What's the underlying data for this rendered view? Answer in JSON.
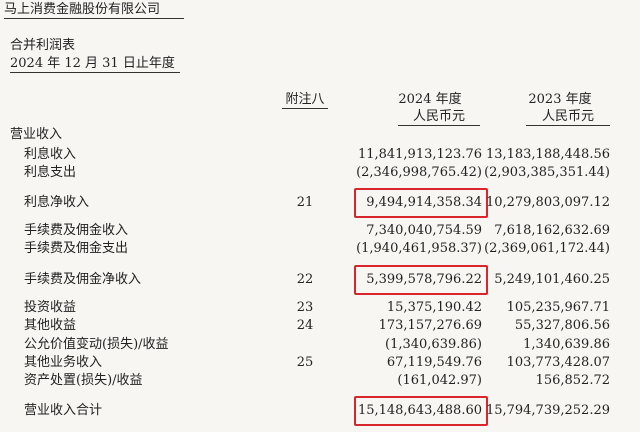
{
  "header": {
    "company": "马上消费金融股份有限公司",
    "title": "合并利润表",
    "period": "2024 年 12 月 31 日止年度"
  },
  "columns": {
    "note": "附注八",
    "y2024": {
      "year": "2024 年度",
      "unit": "人民币元"
    },
    "y2023": {
      "year": "2023 年度",
      "unit": "人民币元"
    }
  },
  "table": {
    "section": "营业收入",
    "rows": [
      {
        "label": "利息收入",
        "y2024": "11,841,913,123.76",
        "y2023": "13,183,188,448.56"
      },
      {
        "label": "利息支出",
        "y2024": "(2,346,998,765.42)",
        "y2023": "(2,903,385,351.44)"
      },
      {
        "label": "利息净收入",
        "note": "21",
        "y2024": "9,494,914,358.34",
        "y2023": "10,279,803,097.12",
        "highlighted": true
      },
      {
        "label": "手续费及佣金收入",
        "y2024": "7,340,040,754.59",
        "y2023": "7,618,162,632.69"
      },
      {
        "label": "手续费及佣金支出",
        "y2024": "(1,940,461,958.37)",
        "y2023": "(2,369,061,172.44)"
      },
      {
        "label": "手续费及佣金净收入",
        "note": "22",
        "y2024": "5,399,578,796.22",
        "y2023": "5,249,101,460.25",
        "highlighted": true
      },
      {
        "label": "投资收益",
        "note": "23",
        "y2024": "15,375,190.42",
        "y2023": "105,235,967.71"
      },
      {
        "label": "其他收益",
        "note": "24",
        "y2024": "173,157,276.69",
        "y2023": "55,327,806.56"
      },
      {
        "label": "公允价值变动(损失)/收益",
        "y2024": "(1,340,639.86)",
        "y2023": "1,340,639.86"
      },
      {
        "label": "其他业务收入",
        "note": "25",
        "y2024": "67,119,549.76",
        "y2023": "103,773,428.07"
      },
      {
        "label": "资产处置(损失)/收益",
        "y2024": "(161,042.97)",
        "y2023": "156,852.72"
      },
      {
        "label": "营业收入合计",
        "y2024": "15,148,643,488.60",
        "y2023": "15,794,739,252.29",
        "highlighted": true
      }
    ]
  }
}
